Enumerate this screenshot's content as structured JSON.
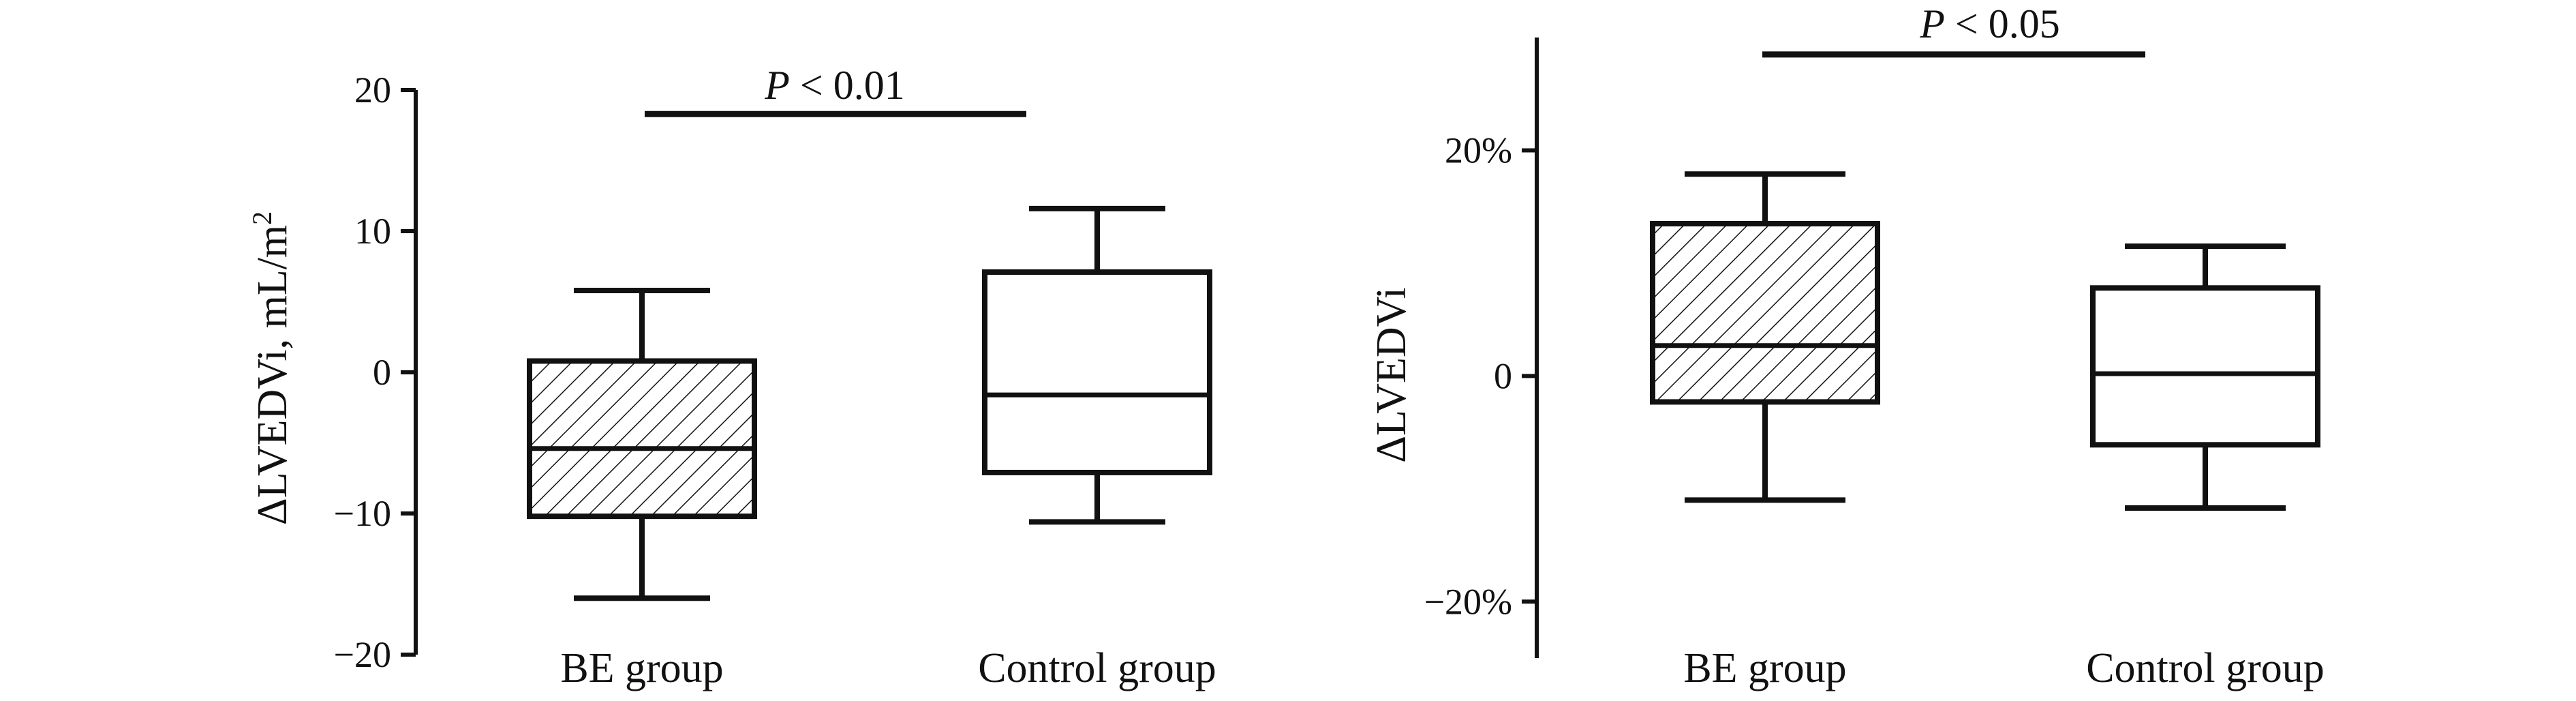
{
  "chart_data": [
    {
      "type": "box",
      "ylabel": "ΔLVEDVi, mL/m",
      "ylabel_superscript": "2",
      "ylim": [
        -20,
        20
      ],
      "yticks": [
        {
          "value": 20,
          "label": "20"
        },
        {
          "value": 10,
          "label": "10"
        },
        {
          "value": 0,
          "label": "0"
        },
        {
          "value": -10,
          "label": "−10"
        },
        {
          "value": -20,
          "label": "−20"
        }
      ],
      "categories": [
        "BE group",
        "Control group"
      ],
      "boxes": [
        {
          "category": "BE group",
          "min": -16,
          "q1": -10.2,
          "median": -5.4,
          "q3": 0.8,
          "max": 5.8,
          "fill": "hatched"
        },
        {
          "category": "Control group",
          "min": -10.6,
          "q1": -7.1,
          "median": -1.6,
          "q3": 7.1,
          "max": 11.6,
          "fill": "white"
        }
      ],
      "significance": {
        "p": "P",
        "text": " < 0.01",
        "level": 18.3
      }
    },
    {
      "type": "box",
      "ylabel": "ΔLVEDVi",
      "ylim": [
        -25,
        30
      ],
      "yticks": [
        {
          "value": 20,
          "label": "20%"
        },
        {
          "value": 0,
          "label": "0"
        },
        {
          "value": -20,
          "label": "−20%"
        }
      ],
      "categories": [
        "BE group",
        "Control group"
      ],
      "boxes": [
        {
          "category": "BE group",
          "min": -11,
          "q1": -2.3,
          "median": 2.7,
          "q3": 13.5,
          "max": 17.9,
          "fill": "hatched"
        },
        {
          "category": "Control group",
          "min": -11.7,
          "q1": -6.1,
          "median": 0.2,
          "q3": 7.8,
          "max": 11.5,
          "fill": "white"
        }
      ],
      "significance": {
        "p": "P",
        "text": " < 0.05",
        "level": 28.5
      }
    }
  ]
}
